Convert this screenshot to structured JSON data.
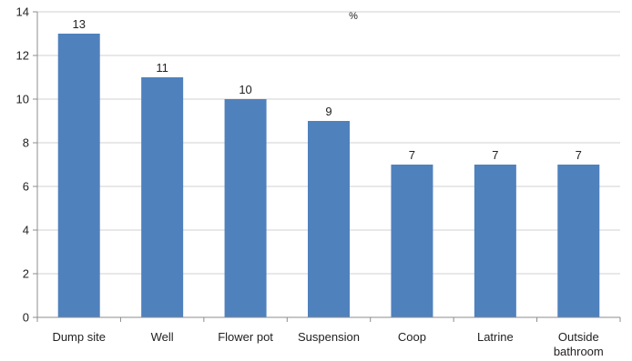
{
  "chart_data": {
    "type": "bar",
    "title": "",
    "unit_label": "%",
    "xlabel": "",
    "ylabel": "",
    "categories": [
      [
        "Dump site"
      ],
      [
        "Well"
      ],
      [
        "Flower pot"
      ],
      [
        "Suspension"
      ],
      [
        "Coop"
      ],
      [
        "Latrine"
      ],
      [
        "Outside",
        "bathroom"
      ]
    ],
    "values": [
      13,
      11,
      10,
      9,
      7,
      7,
      7
    ],
    "data_labels": [
      "13",
      "11",
      "10",
      "9",
      "7",
      "7",
      "7"
    ],
    "ylim": [
      0,
      14
    ],
    "yticks": [
      0,
      2,
      4,
      6,
      8,
      10,
      12,
      14
    ],
    "grid": "horizontal",
    "bar_color": "#4f81bd",
    "grid_color": "#d0d0d0",
    "axis_color": "#8c8c8c"
  }
}
